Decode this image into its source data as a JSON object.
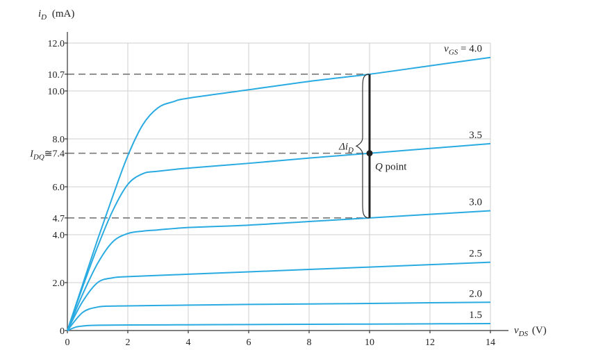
{
  "chart_data": {
    "type": "line",
    "xlabel": "v",
    "xlabel_sub": "DS",
    "xlabel_unit": "(V)",
    "ylabel": "i",
    "ylabel_sub": "D",
    "ylabel_unit": "(mA)",
    "xlim": [
      0,
      14
    ],
    "ylim": [
      0,
      12
    ],
    "x_ticks": [
      "0",
      "2",
      "4",
      "6",
      "8",
      "10",
      "12",
      "14"
    ],
    "x_tick_values": [
      0,
      2,
      4,
      6,
      8,
      10,
      12,
      14
    ],
    "y_ticks": [
      "0",
      "2.0",
      "4.0",
      "4.7",
      "6.0",
      "7.4",
      "8.0",
      "10.0",
      "10.7",
      "12.0"
    ],
    "y_tick_values": [
      0,
      2,
      4,
      4.7,
      6,
      7.4,
      8,
      10,
      10.7,
      12
    ],
    "grid": true,
    "series": [
      {
        "name": "4.0",
        "x": [
          0,
          0.5,
          1,
          1.5,
          2,
          2.5,
          3,
          3.5,
          4,
          6,
          8,
          10,
          12,
          14
        ],
        "values": [
          0,
          1.9,
          3.8,
          5.6,
          7.3,
          8.6,
          9.3,
          9.55,
          9.7,
          10.05,
          10.4,
          10.7,
          11.05,
          11.4
        ]
      },
      {
        "name": "3.5",
        "x": [
          0,
          0.5,
          1,
          1.5,
          2,
          2.5,
          3,
          4,
          6,
          8,
          10,
          12,
          14
        ],
        "values": [
          0,
          1.8,
          3.5,
          5.0,
          6.1,
          6.55,
          6.65,
          6.78,
          6.98,
          7.2,
          7.4,
          7.6,
          7.8
        ]
      },
      {
        "name": "3.0",
        "x": [
          0,
          0.5,
          1,
          1.5,
          2,
          2.5,
          3,
          4,
          6,
          8,
          10,
          12,
          14
        ],
        "values": [
          0,
          1.5,
          2.8,
          3.7,
          4.05,
          4.15,
          4.2,
          4.3,
          4.4,
          4.55,
          4.7,
          4.85,
          5.0
        ]
      },
      {
        "name": "2.5",
        "x": [
          0,
          0.5,
          1,
          1.5,
          2,
          4,
          6,
          8,
          10,
          12,
          14
        ],
        "values": [
          0,
          1.2,
          2.0,
          2.2,
          2.25,
          2.35,
          2.45,
          2.55,
          2.65,
          2.75,
          2.85
        ]
      },
      {
        "name": "2.0",
        "x": [
          0,
          0.5,
          1,
          1.5,
          2,
          4,
          6,
          8,
          10,
          12,
          14
        ],
        "values": [
          0,
          0.75,
          0.98,
          1.02,
          1.03,
          1.06,
          1.09,
          1.11,
          1.13,
          1.16,
          1.18
        ]
      },
      {
        "name": "1.5",
        "x": [
          0,
          0.3,
          0.6,
          1,
          2,
          4,
          6,
          8,
          10,
          12,
          14
        ],
        "values": [
          0,
          0.15,
          0.2,
          0.22,
          0.23,
          0.24,
          0.25,
          0.26,
          0.27,
          0.28,
          0.29
        ]
      }
    ],
    "legend_prefix": "v",
    "legend_prefix_sub": "GS",
    "legend_prefix_eq": "= ",
    "dashed_levels": [
      10.7,
      7.4,
      4.7
    ],
    "delta_line": {
      "x": 10,
      "y_low": 4.7,
      "y_high": 10.7
    },
    "q_point": {
      "x": 10,
      "y": 7.4
    },
    "annotations": {
      "q_point_label": "Q point",
      "delta_label_main": "Δi",
      "delta_label_sub": "D",
      "idq_label_main": "I",
      "idq_label_sub": "DQ",
      "idq_label_approx": "≅"
    },
    "colors": {
      "curve": "#29abe2",
      "grid": "#cfcfcf",
      "dash": "#777777",
      "marker": "#222222"
    }
  }
}
